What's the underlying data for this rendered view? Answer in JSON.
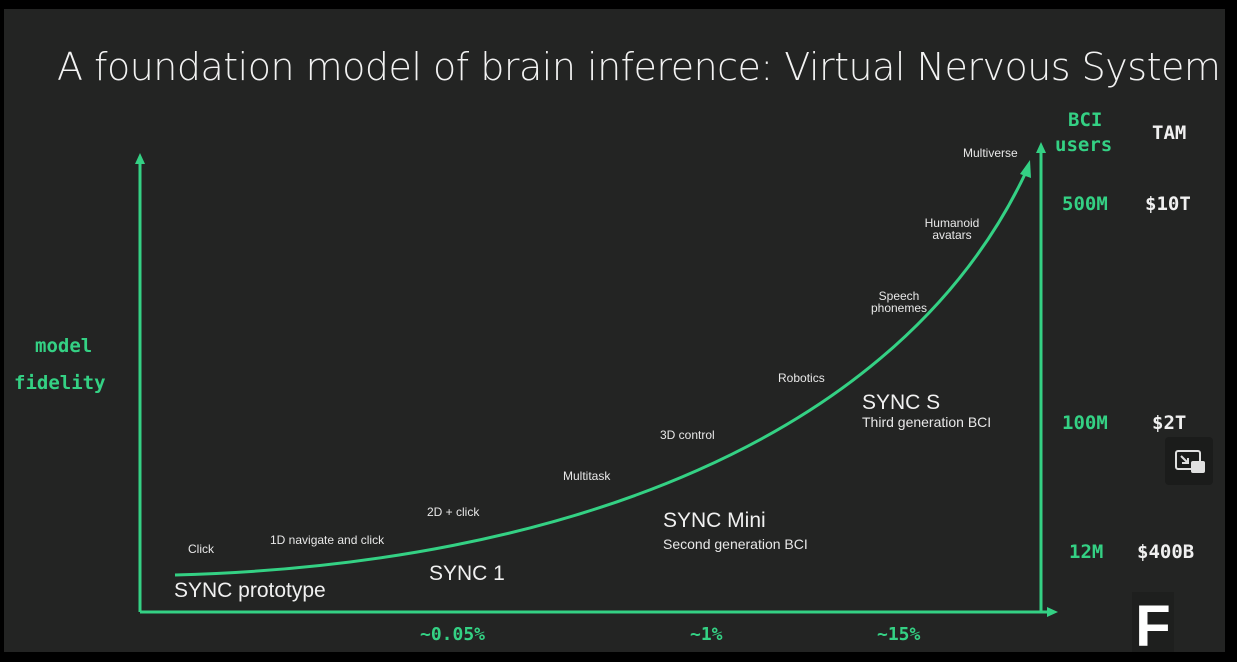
{
  "title": "A foundation model of brain inference:  Virtual Nervous System",
  "y_axis_label": [
    "model",
    "fidelity"
  ],
  "right_headers": {
    "users": [
      "BCI",
      "users"
    ],
    "tam": "TAM"
  },
  "tiers": [
    {
      "users": "500M",
      "tam": "$10T"
    },
    {
      "users": "100M",
      "tam": "$2T"
    },
    {
      "users": "12M",
      "tam": "$400B"
    }
  ],
  "x_ticks": [
    "~0.05%",
    "~1%",
    "~15%"
  ],
  "milestones": [
    "Click",
    "1D navigate and click",
    "2D + click",
    "Multitask",
    "3D control",
    "Robotics",
    "Speech phonemes",
    "Humanoid avatars",
    "Multiverse"
  ],
  "products": [
    {
      "name": "SYNC prototype",
      "subtitle": ""
    },
    {
      "name": "SYNC 1",
      "subtitle": ""
    },
    {
      "name": "SYNC Mini",
      "subtitle": "Second generation BCI"
    },
    {
      "name": "SYNC S",
      "subtitle": "Third generation BCI"
    }
  ],
  "logo": "F",
  "colors": {
    "accent": "#34d184",
    "background": "#232423",
    "text": "#f0f0f0"
  },
  "icons": {
    "pip": "picture-in-picture-exit-icon"
  }
}
